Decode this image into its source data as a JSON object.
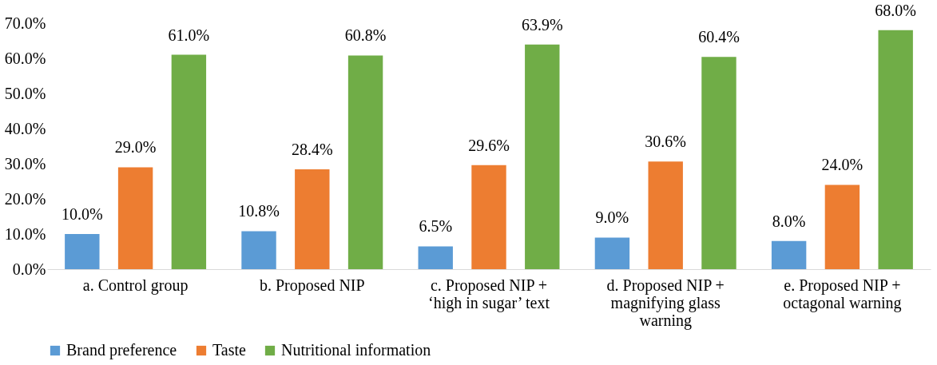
{
  "chart_data": {
    "type": "bar",
    "categories": [
      "a. Control group",
      "b. Proposed NIP",
      "c. Proposed NIP + ‘high in sugar’ text",
      "d. Proposed NIP + magnifying glass warning",
      "e. Proposed NIP + octagonal warning"
    ],
    "series": [
      {
        "name": "Brand preference",
        "color": "#5b9bd5",
        "values": [
          10.0,
          10.8,
          6.5,
          9.0,
          8.0
        ],
        "value_labels": [
          "10.0%",
          "10.8%",
          "6.5%",
          "9.0%",
          "8.0%"
        ]
      },
      {
        "name": "Taste",
        "color": "#ed7d31",
        "values": [
          29.0,
          28.4,
          29.6,
          30.6,
          24.0
        ],
        "value_labels": [
          "29.0%",
          "28.4%",
          "29.6%",
          "30.6%",
          "24.0%"
        ]
      },
      {
        "name": "Nutritional information",
        "color": "#70ad47",
        "values": [
          61.0,
          60.8,
          63.9,
          60.4,
          68.0
        ],
        "value_labels": [
          "61.0%",
          "60.8%",
          "63.9%",
          "60.4%",
          "68.0%"
        ]
      }
    ],
    "ylim": [
      0,
      70
    ],
    "yticks": [
      {
        "value": 0,
        "label": "0.0%"
      },
      {
        "value": 10,
        "label": "10.0%"
      },
      {
        "value": 20,
        "label": "20.0%"
      },
      {
        "value": 30,
        "label": "30.0%"
      },
      {
        "value": 40,
        "label": "40.0%"
      },
      {
        "value": 50,
        "label": "50.0%"
      },
      {
        "value": 60,
        "label": "60.0%"
      },
      {
        "value": 70,
        "label": "70.0%"
      }
    ],
    "grid": false,
    "legend": "bottom"
  }
}
